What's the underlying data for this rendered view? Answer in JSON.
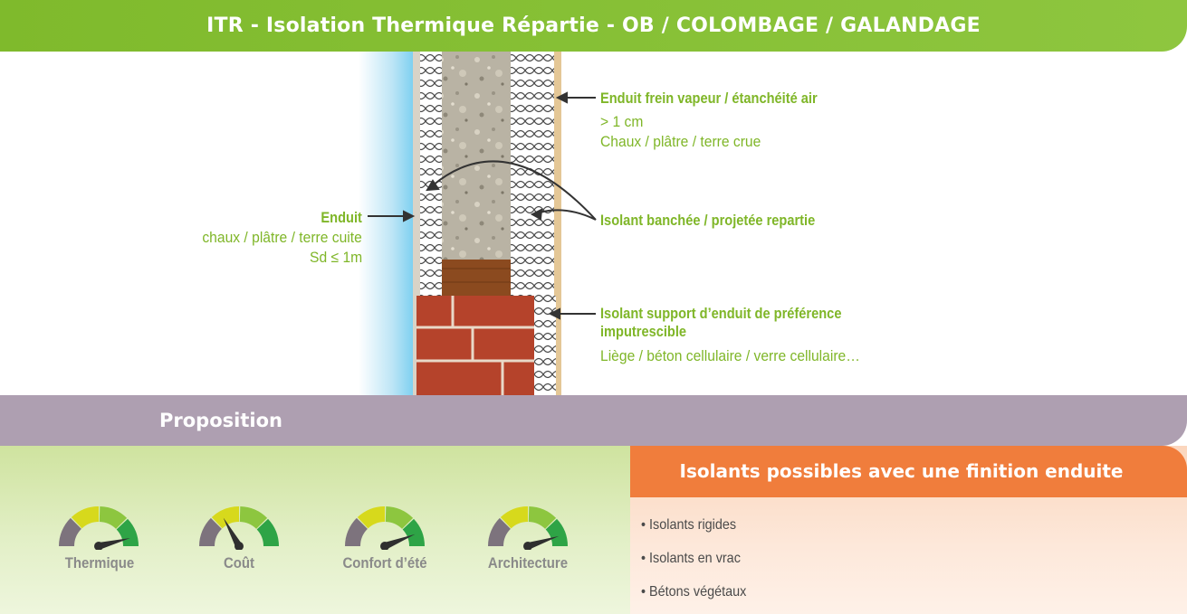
{
  "header": {
    "title": "ITR - Isolation Thermique Répartie - OB / COLOMBAGE / GALANDAGE"
  },
  "labels": {
    "enduit_left": {
      "title": "Enduit",
      "line1": "chaux / plâtre / terre cuite",
      "line2": "Sd ≤ 1m"
    },
    "frein_vapeur": {
      "title": "Enduit frein vapeur / étanchéité air",
      "line1": "> 1 cm",
      "line2": "Chaux / plâtre / terre crue"
    },
    "isolant_banchee": {
      "title": "Isolant banchée / projetée repartie"
    },
    "isolant_support": {
      "title_line1": "Isolant support d’enduit de préférence",
      "title_line2": "imputrescible",
      "line1": "Liège / béton cellulaire / verre cellulaire…"
    }
  },
  "proposition": {
    "title": "Proposition"
  },
  "gauges": [
    {
      "label": "Thermique",
      "level": 0.92
    },
    {
      "label": "Coût",
      "level": 0.34
    },
    {
      "label": "Confort d’été",
      "level": 0.88
    },
    {
      "label": "Architecture",
      "level": 0.9
    }
  ],
  "insulation": {
    "title": "Isolants possibles avec une finition enduite",
    "items": [
      "• Isolants rigides",
      "• Isolants en vrac",
      "• Bétons végétaux"
    ]
  },
  "colors": {
    "header_green": "#7fba2c",
    "label_green": "#7fb628",
    "proposition_band": "#ae9fb1",
    "orange": "#f07d3c",
    "brick": "#b5432b"
  }
}
